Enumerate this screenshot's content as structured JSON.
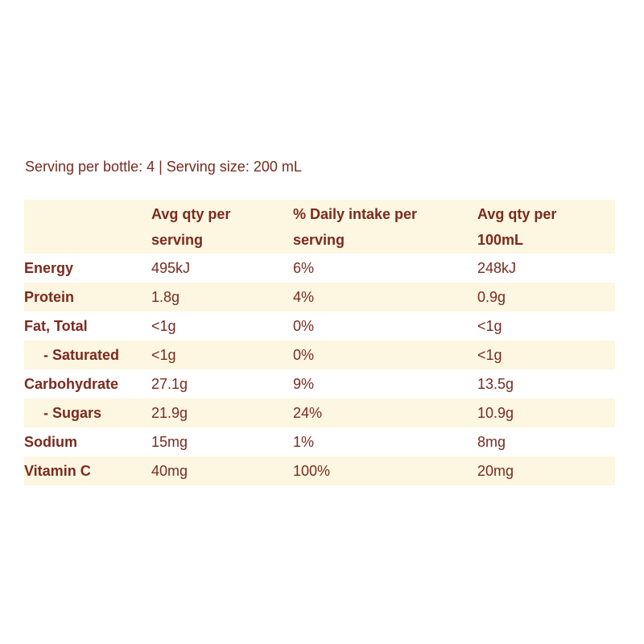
{
  "serving_info": "Serving per bottle: 4 | Serving size: 200 mL",
  "table": {
    "headers": [
      "",
      "Avg qty per serving",
      "% Daily intake per serving",
      "Avg qty per 100mL"
    ],
    "header_lines": [
      [
        "",
        ""
      ],
      [
        "Avg qty per",
        "serving"
      ],
      [
        "% Daily intake per",
        "serving"
      ],
      [
        "Avg qty per",
        "100mL"
      ]
    ],
    "rows": [
      {
        "nutrient": "Energy",
        "per_serving": "495kJ",
        "daily_intake": "6%",
        "per_100ml": "248kJ"
      },
      {
        "nutrient": "Protein",
        "per_serving": "1.8g",
        "daily_intake": "4%",
        "per_100ml": "0.9g"
      },
      {
        "nutrient": "Fat, Total",
        "per_serving": "<1g",
        "daily_intake": "0%",
        "per_100ml": "<1g"
      },
      {
        "nutrient": "- Saturated",
        "per_serving": "<1g",
        "daily_intake": "0%",
        "per_100ml": "<1g"
      },
      {
        "nutrient": "Carbohydrate",
        "per_serving": "27.1g",
        "daily_intake": "9%",
        "per_100ml": "13.5g"
      },
      {
        "nutrient": "- Sugars",
        "per_serving": "21.9g",
        "daily_intake": "24%",
        "per_100ml": "10.9g"
      },
      {
        "nutrient": "Sodium",
        "per_serving": "15mg",
        "daily_intake": "1%",
        "per_100ml": "8mg"
      },
      {
        "nutrient": "Vitamin C",
        "per_serving": "40mg",
        "daily_intake": "100%",
        "per_100ml": "20mg"
      }
    ]
  },
  "colors": {
    "text": "#7a2a1e",
    "row_shade": "#fdf6e1",
    "background": "#ffffff"
  }
}
